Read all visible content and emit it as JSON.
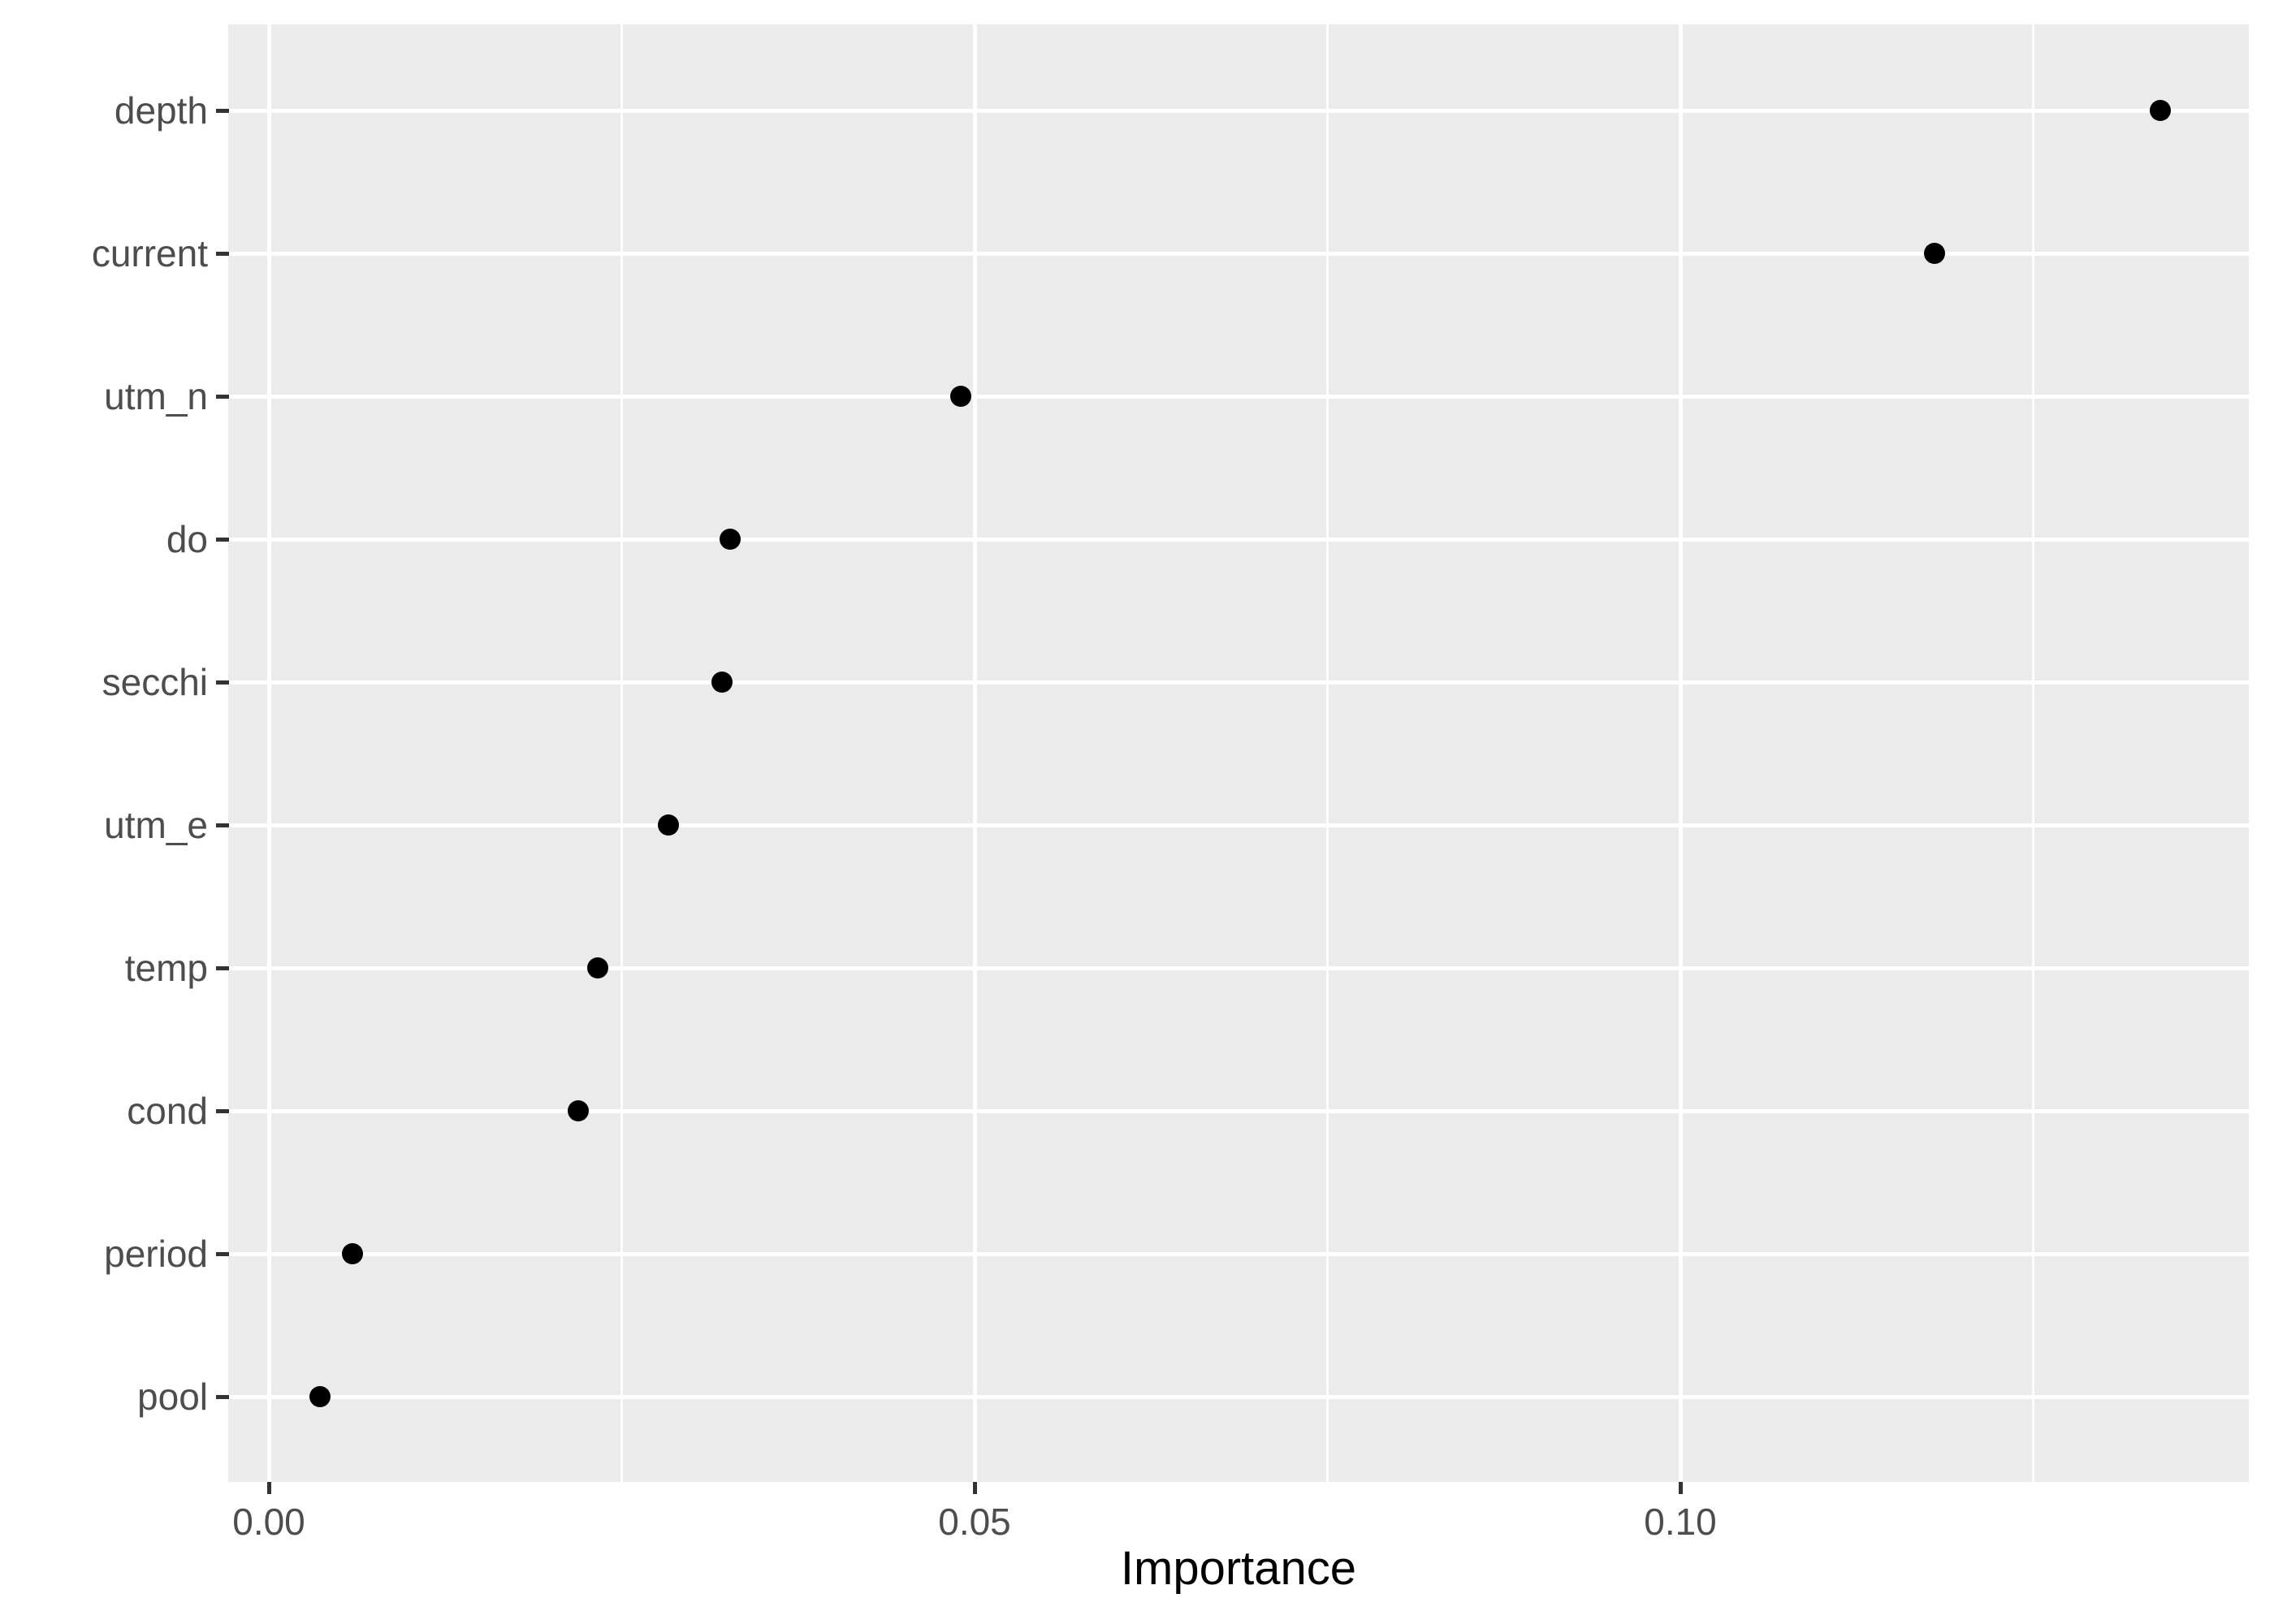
{
  "chart_data": {
    "type": "scatter",
    "subtype": "horizontal-dot-plot",
    "title": "",
    "xlabel": "Importance",
    "ylabel": "",
    "categories": [
      "depth",
      "current",
      "utm_n",
      "do",
      "secchi",
      "utm_e",
      "temp",
      "cond",
      "period",
      "pool"
    ],
    "series": [
      {
        "name": "Importance",
        "values": [
          0.134,
          0.118,
          0.049,
          0.0327,
          0.0321,
          0.0283,
          0.0233,
          0.0219,
          0.0059,
          0.0036
        ]
      }
    ],
    "x_axis": {
      "ticks": [
        0,
        0.05,
        0.1
      ],
      "tick_labels": [
        "0.00",
        "0.05",
        "0.10"
      ],
      "minor_ticks": [
        0.025,
        0.075,
        0.125
      ],
      "range": [
        -0.0029,
        0.1403
      ]
    },
    "y_axis": {
      "order": "top-to-bottom"
    },
    "grid": {
      "major": true,
      "minor_vertical": true,
      "minor_horizontal": false,
      "color": "#FFFFFF"
    },
    "legend_position": "none",
    "style": {
      "panel_bg": "#EBEBEB",
      "outer_bg": "#FFFFFF",
      "point_color": "#000000",
      "tick_mark_color": "#333333",
      "tick_label_color": "#4D4D4D",
      "axis_title_color": "#000000"
    }
  }
}
